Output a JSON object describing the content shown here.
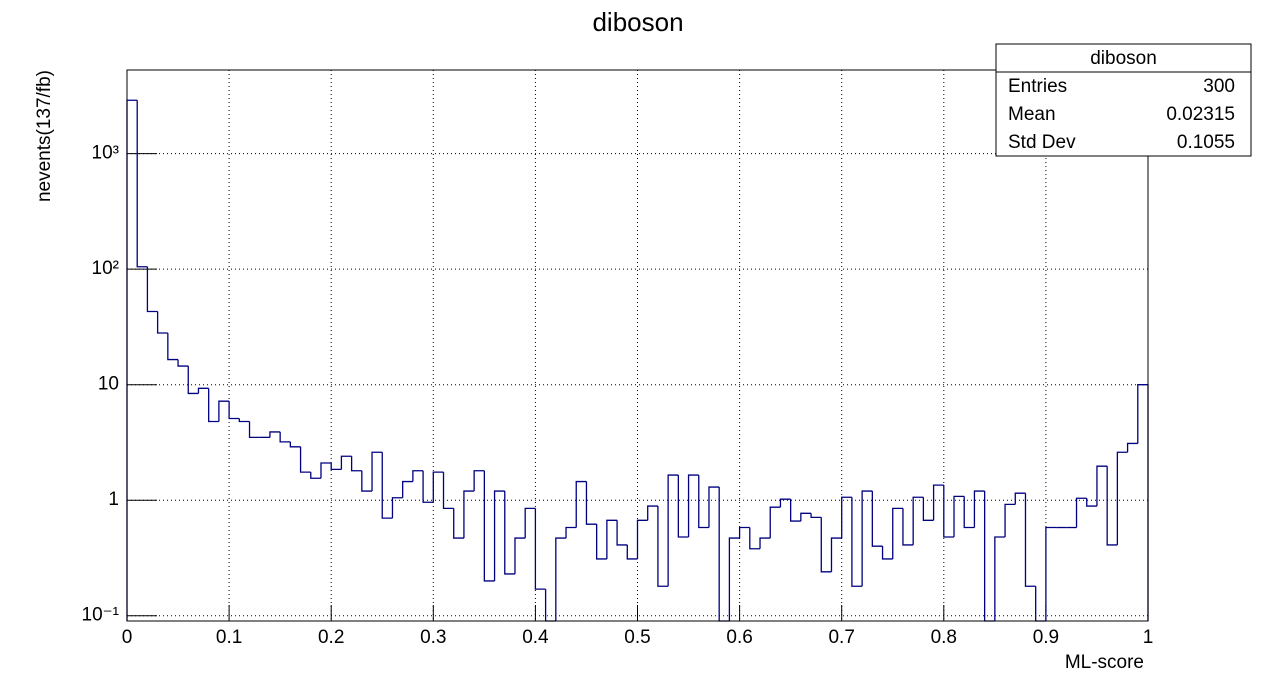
{
  "chart_data": {
    "type": "histogram",
    "title": "diboson",
    "x_label": "ML-score",
    "y_label": "nevents(137/fb)",
    "bins": [
      0,
      0.01,
      0.02,
      0.03,
      0.04,
      0.05,
      0.06,
      0.07,
      0.08,
      0.09,
      0.1,
      0.11,
      0.12,
      0.13,
      0.14,
      0.15,
      0.16,
      0.17,
      0.18,
      0.19,
      0.2,
      0.21,
      0.22,
      0.23,
      0.24,
      0.25,
      0.26,
      0.27,
      0.28,
      0.29,
      0.3,
      0.31,
      0.32,
      0.33,
      0.34,
      0.35,
      0.36,
      0.37,
      0.38,
      0.39,
      0.4,
      0.41,
      0.42,
      0.43,
      0.44,
      0.45,
      0.46,
      0.47,
      0.48,
      0.49,
      0.5,
      0.51,
      0.52,
      0.53,
      0.54,
      0.55,
      0.56,
      0.57,
      0.58,
      0.59,
      0.6,
      0.61,
      0.62,
      0.63,
      0.64,
      0.65,
      0.66,
      0.67,
      0.68,
      0.69,
      0.7,
      0.71,
      0.72,
      0.73,
      0.74,
      0.75,
      0.76,
      0.77,
      0.78,
      0.79,
      0.8,
      0.81,
      0.82,
      0.83,
      0.84,
      0.85,
      0.86,
      0.87,
      0.88,
      0.89,
      0.9,
      0.91,
      0.92,
      0.93,
      0.94,
      0.95,
      0.96,
      0.97,
      0.98,
      0.99,
      1
    ],
    "values": [
      2900,
      105,
      43,
      28,
      16.5,
      14.5,
      8.4,
      9.3,
      4.8,
      7.2,
      5.1,
      4.8,
      3.5,
      3.5,
      3.9,
      3.2,
      2.9,
      1.75,
      1.55,
      2.1,
      1.85,
      2.4,
      1.8,
      1.2,
      2.6,
      0.7,
      1.05,
      1.45,
      1.8,
      0.96,
      1.75,
      0.85,
      0.47,
      1.2,
      1.8,
      0.2,
      1.2,
      0.23,
      0.47,
      0.85,
      0.17,
      0,
      0.47,
      0.58,
      1.45,
      0.62,
      0.31,
      0.67,
      0.41,
      0.31,
      0.67,
      0.89,
      0.18,
      1.65,
      0.48,
      1.65,
      0.58,
      1.3,
      0,
      0.47,
      0.58,
      0.38,
      0.47,
      0.87,
      1.02,
      0.66,
      0.77,
      0.71,
      0.24,
      0.47,
      1.06,
      0.18,
      1.2,
      0.4,
      0.31,
      0.85,
      0.41,
      1.06,
      0.67,
      1.35,
      0.48,
      1.08,
      0.58,
      1.2,
      0,
      0.48,
      0.92,
      1.15,
      0.18,
      0,
      0.58,
      0.58,
      0.58,
      1.04,
      0.89,
      1.97,
      0.41,
      2.6,
      3.1,
      10
    ],
    "color": "#000080",
    "log_y": true,
    "grid": true,
    "xlim": [
      0,
      1
    ],
    "xticks": [
      0,
      0.1,
      0.2,
      0.3,
      0.4,
      0.5,
      0.6,
      0.7,
      0.8,
      0.9,
      1
    ],
    "ylim": [
      0.09,
      5300
    ],
    "yticks": [
      {
        "value": 0.1,
        "label": "10⁻¹"
      },
      1,
      10,
      {
        "value": 100,
        "label": "10²"
      },
      {
        "value": 1000,
        "label": "10³"
      }
    ],
    "stats": {
      "title": "diboson",
      "rows": [
        [
          "Entries",
          300
        ],
        [
          "Mean",
          0.02315
        ],
        [
          "Std Dev",
          0.1055
        ]
      ]
    }
  }
}
